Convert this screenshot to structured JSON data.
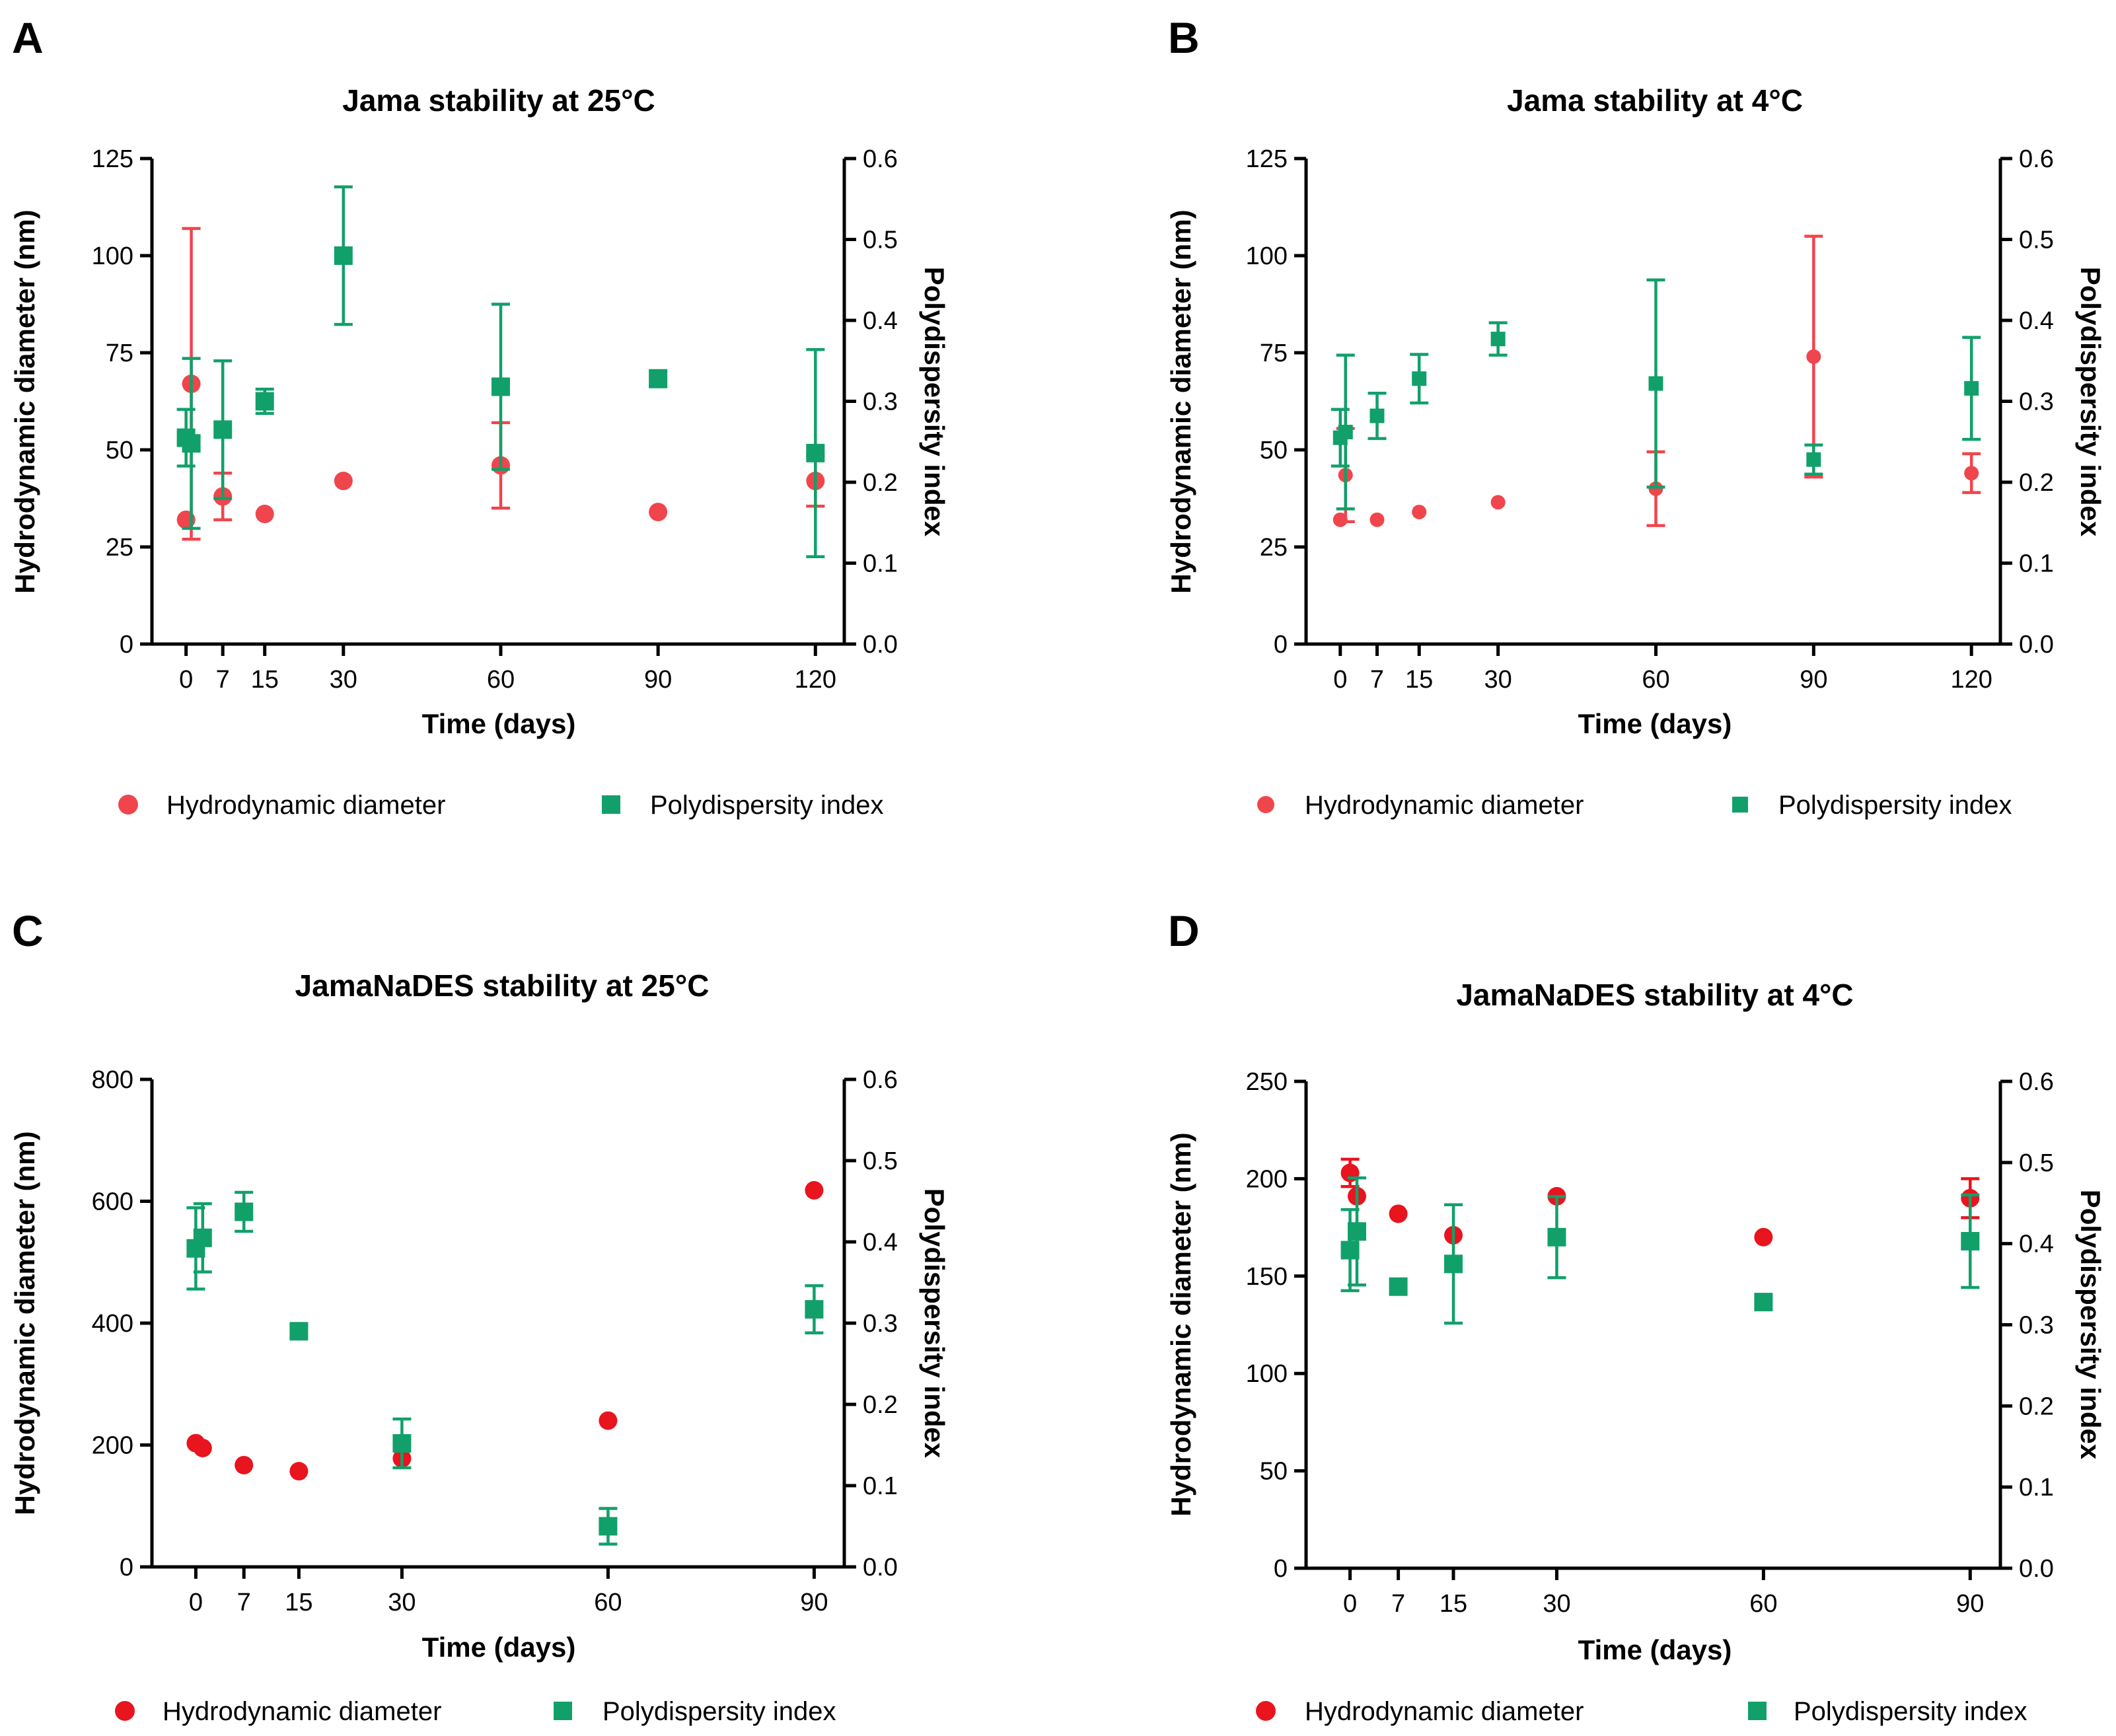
{
  "colors": {
    "diameter": "#f0454c",
    "diameter_dark": "#e8141e",
    "pdi": "#11a06a"
  },
  "chart_data": [
    {
      "type": "scatter",
      "panel": "A",
      "title": "Jama stability at 25°C",
      "xlabel": "Time (days)",
      "ylabel": "Hydrodynamic diameter (nm)",
      "y2label": "Polydispersity index",
      "xticks": [
        0,
        7,
        15,
        30,
        60,
        90,
        120
      ],
      "xlim": [
        -6,
        125
      ],
      "ylim": [
        0,
        125
      ],
      "yticks": [
        0,
        25,
        50,
        75,
        100,
        125
      ],
      "y2lim": [
        0,
        0.6
      ],
      "y2ticks": [
        0.0,
        0.1,
        0.2,
        0.3,
        0.4,
        0.5,
        0.6
      ],
      "legend": [
        "Hydrodynamic diameter",
        "Polydispersity index"
      ],
      "series": [
        {
          "name": "Hydrodynamic diameter",
          "axis": "left",
          "marker": "circle",
          "points": [
            {
              "x": 0,
              "y": 32,
              "err": 0
            },
            {
              "x": 1,
              "y": 67,
              "err": 40
            },
            {
              "x": 7,
              "y": 38,
              "err": 6
            },
            {
              "x": 15,
              "y": 33.5,
              "err": 0
            },
            {
              "x": 30,
              "y": 42,
              "err": 0
            },
            {
              "x": 60,
              "y": 46,
              "err": 11
            },
            {
              "x": 90,
              "y": 34,
              "err": 0
            },
            {
              "x": 120,
              "y": 42,
              "err": 6.5
            }
          ]
        },
        {
          "name": "Polydispersity index",
          "axis": "right",
          "marker": "square",
          "points": [
            {
              "x": 0,
              "y": 0.255,
              "err": 0.035
            },
            {
              "x": 1,
              "y": 0.248,
              "err": 0.105
            },
            {
              "x": 7,
              "y": 0.265,
              "err": 0.085
            },
            {
              "x": 15,
              "y": 0.3,
              "err": 0.015
            },
            {
              "x": 30,
              "y": 0.48,
              "err": 0.085
            },
            {
              "x": 60,
              "y": 0.318,
              "err": 0.102
            },
            {
              "x": 90,
              "y": 0.328,
              "err": 0.01
            },
            {
              "x": 120,
              "y": 0.236,
              "err": 0.128
            }
          ]
        }
      ]
    },
    {
      "type": "scatter",
      "panel": "B",
      "title": "Jama stability at 4°C",
      "xlabel": "Time (days)",
      "ylabel": "Hydrodynamic diameter (nm)",
      "y2label": "Polydispersity index",
      "xticks": [
        0,
        7,
        15,
        30,
        60,
        90,
        120
      ],
      "xlim": [
        -6,
        125
      ],
      "ylim": [
        0,
        125
      ],
      "yticks": [
        0,
        25,
        50,
        75,
        100,
        125
      ],
      "y2lim": [
        0,
        0.6
      ],
      "y2ticks": [
        0.0,
        0.1,
        0.2,
        0.3,
        0.4,
        0.5,
        0.6
      ],
      "legend": [
        "Hydrodynamic diameter",
        "Polydispersity index"
      ],
      "series": [
        {
          "name": "Hydrodynamic diameter",
          "axis": "left",
          "marker": "circle",
          "points": [
            {
              "x": 0,
              "y": 32,
              "err": 0
            },
            {
              "x": 1,
              "y": 43.5,
              "err": 12
            },
            {
              "x": 7,
              "y": 32,
              "err": 0
            },
            {
              "x": 15,
              "y": 34,
              "err": 0
            },
            {
              "x": 30,
              "y": 36.5,
              "err": 0
            },
            {
              "x": 60,
              "y": 40,
              "err": 9.5
            },
            {
              "x": 90,
              "y": 74,
              "err": 31
            },
            {
              "x": 120,
              "y": 44,
              "err": 5
            }
          ]
        },
        {
          "name": "Polydispersity index",
          "axis": "right",
          "marker": "square",
          "points": [
            {
              "x": 0,
              "y": 0.255,
              "err": 0.035
            },
            {
              "x": 1,
              "y": 0.262,
              "err": 0.095
            },
            {
              "x": 7,
              "y": 0.282,
              "err": 0.028
            },
            {
              "x": 15,
              "y": 0.328,
              "err": 0.03
            },
            {
              "x": 30,
              "y": 0.377,
              "err": 0.02
            },
            {
              "x": 60,
              "y": 0.322,
              "err": 0.128
            },
            {
              "x": 90,
              "y": 0.228,
              "err": 0.018
            },
            {
              "x": 120,
              "y": 0.316,
              "err": 0.063
            }
          ]
        }
      ]
    },
    {
      "type": "scatter",
      "panel": "C",
      "title": "JamaNaDES stability at 25°C",
      "xlabel": "Time (days)",
      "ylabel": "Hydrodynamic diameter (nm)",
      "y2label": "Polydispersity index",
      "xticks": [
        0,
        7,
        15,
        30,
        60,
        90
      ],
      "xlim": [
        -6,
        94
      ],
      "ylim": [
        0,
        800
      ],
      "yticks": [
        0,
        200,
        400,
        600,
        800
      ],
      "y2lim": [
        0,
        0.6
      ],
      "y2ticks": [
        0.0,
        0.1,
        0.2,
        0.3,
        0.4,
        0.5,
        0.6
      ],
      "legend": [
        "Hydrodynamic diameter",
        "Polydispersity index"
      ],
      "series": [
        {
          "name": "Hydrodynamic diameter",
          "axis": "left",
          "marker": "circle",
          "points": [
            {
              "x": 0,
              "y": 203,
              "err": 0
            },
            {
              "x": 1,
              "y": 195,
              "err": 0
            },
            {
              "x": 7,
              "y": 167,
              "err": 0
            },
            {
              "x": 15,
              "y": 157,
              "err": 0
            },
            {
              "x": 30,
              "y": 178,
              "err": 0
            },
            {
              "x": 60,
              "y": 240,
              "err": 0
            },
            {
              "x": 90,
              "y": 618,
              "err": 0
            }
          ]
        },
        {
          "name": "Polydispersity index",
          "axis": "right",
          "marker": "square",
          "points": [
            {
              "x": 0,
              "y": 0.392,
              "err": 0.05
            },
            {
              "x": 1,
              "y": 0.405,
              "err": 0.042
            },
            {
              "x": 7,
              "y": 0.437,
              "err": 0.024
            },
            {
              "x": 15,
              "y": 0.29,
              "err": 0.007
            },
            {
              "x": 30,
              "y": 0.152,
              "err": 0.03
            },
            {
              "x": 60,
              "y": 0.05,
              "err": 0.022
            },
            {
              "x": 90,
              "y": 0.317,
              "err": 0.029
            }
          ]
        }
      ]
    },
    {
      "type": "scatter",
      "panel": "D",
      "title": "JamaNaDES stability at 4°C",
      "xlabel": "Time (days)",
      "ylabel": "Hydrodynamic diameter (nm)",
      "y2label": "Polydispersity index",
      "xticks": [
        0,
        7,
        15,
        30,
        60,
        90
      ],
      "xlim": [
        -6,
        94
      ],
      "ylim": [
        0,
        250
      ],
      "yticks": [
        0,
        50,
        100,
        150,
        200,
        250
      ],
      "y2lim": [
        0,
        0.6
      ],
      "y2ticks": [
        0.0,
        0.1,
        0.2,
        0.3,
        0.4,
        0.5,
        0.6
      ],
      "legend": [
        "Hydrodynamic diameter",
        "Polydispersity index"
      ],
      "series": [
        {
          "name": "Hydrodynamic diameter",
          "axis": "left",
          "marker": "circle",
          "points": [
            {
              "x": 0,
              "y": 203,
              "err": 7
            },
            {
              "x": 1,
              "y": 191,
              "err": 0
            },
            {
              "x": 7,
              "y": 182,
              "err": 0
            },
            {
              "x": 15,
              "y": 171,
              "err": 0
            },
            {
              "x": 30,
              "y": 191,
              "err": 0
            },
            {
              "x": 60,
              "y": 170,
              "err": 0
            },
            {
              "x": 90,
              "y": 190,
              "err": 10
            }
          ]
        },
        {
          "name": "Polydispersity index",
          "axis": "right",
          "marker": "square",
          "points": [
            {
              "x": 0,
              "y": 0.392,
              "err": 0.05
            },
            {
              "x": 1,
              "y": 0.415,
              "err": 0.066
            },
            {
              "x": 7,
              "y": 0.347,
              "err": 0
            },
            {
              "x": 15,
              "y": 0.375,
              "err": 0.073
            },
            {
              "x": 30,
              "y": 0.408,
              "err": 0.05
            },
            {
              "x": 60,
              "y": 0.328,
              "err": 0
            },
            {
              "x": 90,
              "y": 0.403,
              "err": 0.057
            }
          ]
        }
      ]
    }
  ]
}
